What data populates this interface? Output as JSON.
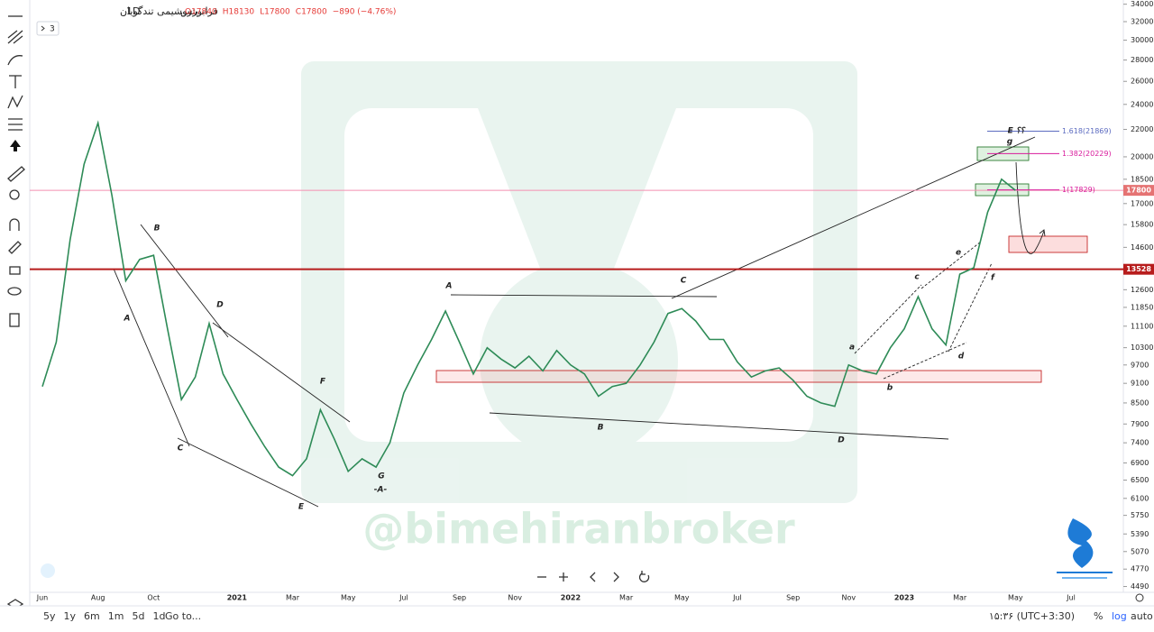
{
  "header": {
    "symbol": "پتروشیمی تندگویان",
    "interval": "1D",
    "exchange": "فرابورس",
    "ohlc": [
      "O17840",
      "H18130",
      "L17800",
      "C17800",
      "−890 (−4.76%)"
    ],
    "indicator_count": "3",
    "watermark": "@bimehiranbroker"
  },
  "toolbar": {
    "ranges": [
      "5y",
      "1y",
      "6m",
      "1m",
      "5d",
      "1d"
    ],
    "goto": "Go to...",
    "clock": "۱۵:۳۶ (UTC+3:30)",
    "percent": "%",
    "log": "log",
    "auto": "auto"
  },
  "chart_data": {
    "type": "line",
    "log_scale": true,
    "color": "#2e8b57",
    "categories": [
      "Jun",
      null,
      null,
      null,
      "Aug",
      null,
      null,
      null,
      "Oct",
      null,
      null,
      null,
      null,
      null,
      "2021",
      null,
      null,
      null,
      "Mar",
      null,
      null,
      null,
      "May",
      null,
      null,
      null,
      "Jul",
      null,
      null,
      null,
      "Sep",
      null,
      null,
      null,
      "Nov",
      null,
      null,
      null,
      "2022",
      null,
      null,
      null,
      "Mar",
      null,
      null,
      null,
      "May",
      null,
      null,
      null,
      "Jul",
      null,
      null,
      null,
      "Sep",
      null,
      null,
      null,
      "Nov",
      null,
      null,
      null,
      "2023",
      null,
      null,
      null,
      "Mar",
      null,
      null,
      null,
      "May",
      null,
      null,
      null,
      "Jul"
    ],
    "values": [
      9000,
      10500,
      15000,
      19500,
      22500,
      17500,
      13000,
      14000,
      14200,
      11000,
      8600,
      9300,
      11200,
      9400,
      8600,
      7900,
      7300,
      6800,
      6600,
      7000,
      8300,
      7500,
      6700,
      7000,
      6800,
      7400,
      8800,
      9700,
      10600,
      11700,
      10500,
      9400,
      10300,
      9900,
      9600,
      10000,
      9500,
      10200,
      9700,
      9400,
      8700,
      9000,
      9100,
      9700,
      10500,
      11600,
      11800,
      11300,
      10600,
      10600,
      9800,
      9300,
      9500,
      9600,
      9200,
      8700,
      8500,
      8400,
      9700,
      9500,
      9400,
      10300,
      11000,
      12300,
      11000,
      10400,
      13300,
      13600,
      16500,
      18500,
      17800,
      null,
      null,
      null,
      null
    ],
    "ylim": [
      4400,
      34500
    ],
    "yticks": [
      34000,
      32000,
      30000,
      28000,
      26000,
      24000,
      22000,
      20000,
      18500,
      17000,
      15800,
      14600,
      12600,
      11850,
      11100,
      10300,
      9700,
      9100,
      8500,
      7900,
      7400,
      6900,
      6500,
      6100,
      5750,
      5390,
      5070,
      4770,
      4490
    ],
    "price_lines": [
      {
        "value": 13528,
        "color": "#b71c1c"
      },
      {
        "value": 17800,
        "color": "#f48fb1"
      }
    ],
    "fib_levels": [
      {
        "value": 21869,
        "label": "1.618(21869)",
        "color": "#5c6bc0"
      },
      {
        "value": 20229,
        "label": "1.382(20229)",
        "color": "#d81b9c"
      },
      {
        "value": 17829,
        "label": "1(17829)",
        "color": "#d81b9c"
      }
    ],
    "annotations": [
      "B",
      "D",
      "A",
      "F",
      "C",
      "G",
      "-A-",
      "E",
      "A",
      "C",
      "B",
      "D",
      "a",
      "b",
      "c",
      "d",
      "e",
      "f",
      "g",
      "E ؟؟"
    ]
  }
}
